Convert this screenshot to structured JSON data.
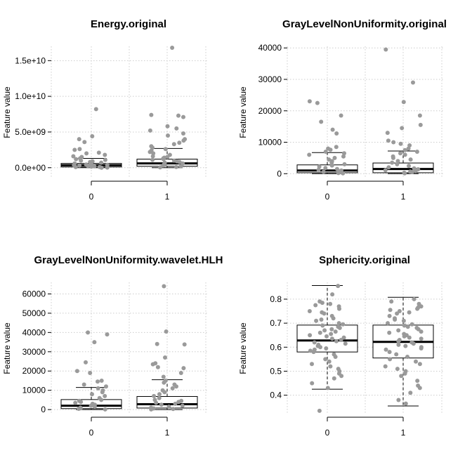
{
  "chart_data": [
    {
      "type": "box",
      "title": "Energy.original",
      "ylabel": "Feature value",
      "xlabel": "",
      "categories": [
        "0",
        "1"
      ],
      "ylim": [
        -1500000000.0,
        17000000000.0
      ],
      "yticks": [
        0,
        5000000000.0,
        10000000000.0,
        15000000000.0
      ],
      "ytick_labels": [
        "0.0e+00",
        "5.0e+09",
        "1.0e+10",
        "1.5e+10"
      ],
      "grid": true,
      "boxes": [
        {
          "q1": 100000000.0,
          "median": 350000000.0,
          "q3": 600000000.0,
          "whisker_low": 0,
          "whisker_high": 1300000000.0
        },
        {
          "q1": 200000000.0,
          "median": 600000000.0,
          "q3": 1200000000.0,
          "whisker_low": 0,
          "whisker_high": 2700000000.0
        }
      ],
      "points": [
        {
          "group": 0,
          "values": [
            8200000000.0,
            4400000000.0,
            4000000000.0,
            3600000000.0,
            2600000000.0,
            2500000000.0,
            2100000000.0,
            2000000000.0,
            1800000000.0,
            1600000000.0,
            1500000000.0,
            1300000000.0,
            1200000000.0,
            1100000000.0,
            1000000000.0,
            900000000.0,
            800000000.0,
            700000000.0,
            600000000.0,
            500000000.0,
            450000000.0,
            400000000.0,
            350000000.0,
            300000000.0,
            250000000.0,
            200000000.0,
            150000000.0,
            100000000.0,
            80000000.0,
            50000000.0,
            30000000.0,
            10000000.0
          ]
        },
        {
          "group": 1,
          "values": [
            16800000000.0,
            7400000000.0,
            7300000000.0,
            7100000000.0,
            5800000000.0,
            5500000000.0,
            5200000000.0,
            4800000000.0,
            4500000000.0,
            4000000000.0,
            3800000000.0,
            3500000000.0,
            3300000000.0,
            3000000000.0,
            2800000000.0,
            2600000000.0,
            2400000000.0,
            2200000000.0,
            2000000000.0,
            1800000000.0,
            1600000000.0,
            1500000000.0,
            1400000000.0,
            1300000000.0,
            1200000000.0,
            1100000000.0,
            1000000000.0,
            900000000.0,
            800000000.0,
            700000000.0,
            600000000.0,
            500000000.0,
            400000000.0,
            300000000.0,
            200000000.0,
            100000000.0,
            50000000.0
          ]
        }
      ]
    },
    {
      "type": "box",
      "title": "GrayLevelNonUniformity.original",
      "ylabel": "Feature value",
      "xlabel": "",
      "categories": [
        "0",
        "1"
      ],
      "ylim": [
        -1500,
        40500
      ],
      "yticks": [
        0,
        10000,
        20000,
        30000,
        40000
      ],
      "ytick_labels": [
        "0",
        "10000",
        "20000",
        "30000",
        "40000"
      ],
      "grid": true,
      "boxes": [
        {
          "q1": 300,
          "median": 1000,
          "q3": 2800,
          "whisker_low": 0,
          "whisker_high": 6700
        },
        {
          "q1": 300,
          "median": 1500,
          "q3": 3400,
          "whisker_low": 0,
          "whisker_high": 7200
        }
      ],
      "points": [
        {
          "group": 0,
          "values": [
            23000,
            22500,
            18500,
            16500,
            14000,
            12800,
            8500,
            8000,
            7600,
            7000,
            6500,
            6000,
            5500,
            5000,
            4500,
            4000,
            3500,
            3000,
            2600,
            2200,
            1800,
            1500,
            1200,
            1000,
            800,
            600,
            400,
            200,
            100
          ]
        },
        {
          "group": 1,
          "values": [
            39500,
            29000,
            22800,
            18500,
            15500,
            14500,
            13000,
            10500,
            10000,
            9500,
            9000,
            8000,
            7500,
            7000,
            6500,
            6000,
            5500,
            5000,
            4500,
            4000,
            3500,
            3000,
            2500,
            2000,
            1700,
            1400,
            1100,
            900,
            700,
            500,
            300,
            100
          ]
        }
      ]
    },
    {
      "type": "box",
      "title": "GrayLevelNonUniformity.wavelet.HLH",
      "ylabel": "Feature value",
      "xlabel": "",
      "categories": [
        "0",
        "1"
      ],
      "ylim": [
        -2500,
        66000
      ],
      "yticks": [
        0,
        10000,
        20000,
        30000,
        40000,
        50000,
        60000
      ],
      "ytick_labels": [
        "0",
        "10000",
        "20000",
        "30000",
        "40000",
        "50000",
        "60000"
      ],
      "grid": true,
      "boxes": [
        {
          "q1": 500,
          "median": 2000,
          "q3": 5200,
          "whisker_low": 0,
          "whisker_high": 11500
        },
        {
          "q1": 800,
          "median": 2800,
          "q3": 6800,
          "whisker_low": 0,
          "whisker_high": 15500
        }
      ],
      "points": [
        {
          "group": 0,
          "values": [
            40000,
            39000,
            35000,
            24500,
            20000,
            19000,
            15000,
            14500,
            13000,
            12000,
            11000,
            10000,
            9000,
            8000,
            7000,
            6000,
            5000,
            4500,
            4000,
            3500,
            3000,
            2500,
            2000,
            1500,
            1000,
            700,
            400,
            100
          ]
        },
        {
          "group": 1,
          "values": [
            64000,
            40500,
            34000,
            33800,
            27000,
            24000,
            23500,
            22000,
            21500,
            19000,
            17000,
            15000,
            14000,
            13000,
            12000,
            11000,
            10000,
            9000,
            8000,
            7000,
            6000,
            5000,
            4500,
            4000,
            3500,
            3000,
            2500,
            2000,
            1500,
            1000,
            600,
            300,
            100
          ]
        }
      ]
    },
    {
      "type": "box",
      "title": "Sphericity.original",
      "ylabel": "Feature value",
      "xlabel": "",
      "categories": [
        "0",
        "1"
      ],
      "ylim": [
        0.32,
        0.87
      ],
      "yticks": [
        0.4,
        0.5,
        0.6,
        0.7,
        0.8
      ],
      "ytick_labels": [
        "0.4",
        "0.5",
        "0.6",
        "0.7",
        "0.8"
      ],
      "grid": true,
      "boxes": [
        {
          "q1": 0.58,
          "median": 0.628,
          "q3": 0.692,
          "whisker_low": 0.425,
          "whisker_high": 0.857
        },
        {
          "q1": 0.555,
          "median": 0.622,
          "q3": 0.692,
          "whisker_low": 0.355,
          "whisker_high": 0.808
        }
      ],
      "points": [
        {
          "group": 0,
          "values": [
            0.855,
            0.82,
            0.79,
            0.785,
            0.78,
            0.775,
            0.77,
            0.76,
            0.75,
            0.745,
            0.74,
            0.73,
            0.72,
            0.715,
            0.71,
            0.7,
            0.695,
            0.69,
            0.685,
            0.68,
            0.675,
            0.67,
            0.665,
            0.66,
            0.655,
            0.65,
            0.645,
            0.64,
            0.635,
            0.63,
            0.625,
            0.62,
            0.615,
            0.61,
            0.605,
            0.6,
            0.595,
            0.59,
            0.585,
            0.58,
            0.57,
            0.56,
            0.55,
            0.54,
            0.53,
            0.52,
            0.51,
            0.5,
            0.49,
            0.48,
            0.47,
            0.45,
            0.43,
            0.335
          ]
        },
        {
          "group": 1,
          "values": [
            0.8,
            0.79,
            0.78,
            0.77,
            0.765,
            0.76,
            0.755,
            0.75,
            0.745,
            0.74,
            0.73,
            0.72,
            0.715,
            0.71,
            0.7,
            0.695,
            0.69,
            0.685,
            0.68,
            0.675,
            0.67,
            0.665,
            0.66,
            0.655,
            0.65,
            0.645,
            0.64,
            0.635,
            0.63,
            0.625,
            0.62,
            0.615,
            0.61,
            0.605,
            0.6,
            0.595,
            0.59,
            0.58,
            0.57,
            0.56,
            0.55,
            0.54,
            0.53,
            0.52,
            0.51,
            0.5,
            0.49,
            0.48,
            0.46,
            0.44,
            0.43,
            0.41,
            0.38,
            0.365
          ]
        }
      ]
    }
  ]
}
